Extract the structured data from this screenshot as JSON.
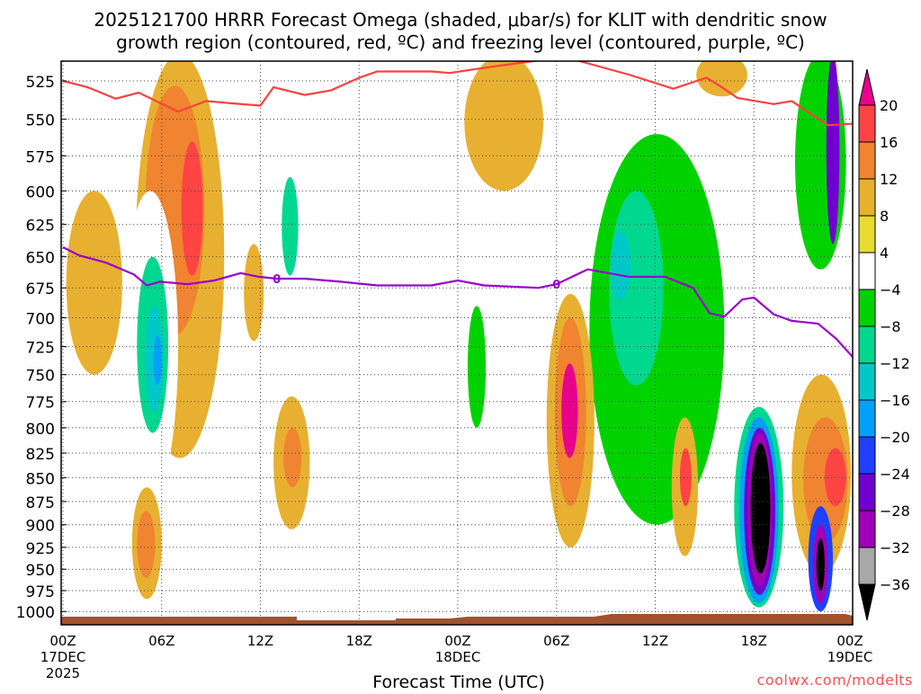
{
  "chart_data": {
    "type": "heatmap",
    "title_lines": [
      "2025121700 HRRR Forecast Omega (shaded, μbar/s) for KLIT with dendritic snow",
      "growth region (contoured, red, ºC) and freezing level (contoured, purple, ºC)"
    ],
    "xlabel": "Forecast Time (UTC)",
    "ylabel": "",
    "x_ticks": [
      {
        "hour": 0,
        "label": "00Z",
        "sub": "17DEC",
        "sub2": "2025"
      },
      {
        "hour": 6,
        "label": "06Z"
      },
      {
        "hour": 12,
        "label": "12Z"
      },
      {
        "hour": 18,
        "label": "18Z"
      },
      {
        "hour": 24,
        "label": "00Z",
        "sub": "18DEC"
      },
      {
        "hour": 30,
        "label": "06Z"
      },
      {
        "hour": 36,
        "label": "12Z"
      },
      {
        "hour": 42,
        "label": "18Z"
      },
      {
        "hour": 48,
        "label": "00Z",
        "sub": "19DEC"
      }
    ],
    "x_range_hours": [
      0,
      48
    ],
    "y_range_hpa": [
      507,
      1012
    ],
    "y_scale": "log",
    "y_ticks": [
      525,
      550,
      575,
      600,
      625,
      650,
      675,
      700,
      725,
      750,
      775,
      800,
      825,
      850,
      875,
      900,
      925,
      950,
      975,
      1000
    ],
    "grid": true,
    "colorbar": {
      "labels": [
        "20",
        "16",
        "12",
        "8",
        "4",
        "−4",
        "−8",
        "−12",
        "−16",
        "−20",
        "−24",
        "−28",
        "−32",
        "−36"
      ],
      "colors": [
        "#ff4444",
        "#f08430",
        "#e8b030",
        "#e8dc30",
        "#ffffff",
        "#00d200",
        "#00d890",
        "#00c8c8",
        "#00a0ff",
        "#2040ff",
        "#7000d0",
        "#a000b8",
        "#a8a8a8"
      ],
      "over_color": "#e8008c",
      "under_color": "#000000"
    },
    "shaded_regions": [
      {
        "level": 5,
        "h": [
          1.0,
          4.5
        ],
        "p": [
          508,
          522
        ]
      },
      {
        "level": 3,
        "h": [
          0.2,
          3.6
        ],
        "p": [
          600,
          750
        ]
      },
      {
        "level": 3,
        "h": [
          4.4,
          9.8
        ],
        "p": [
          508,
          830
        ]
      },
      {
        "level": 2,
        "h": [
          5.0,
          8.6
        ],
        "p": [
          528,
          715
        ]
      },
      {
        "level": 1,
        "h": [
          7.2,
          8.5
        ],
        "p": [
          565,
          665
        ]
      },
      {
        "level": 5,
        "h": [
          3.6,
          7.0
        ],
        "p": [
          600,
          875
        ]
      },
      {
        "level": 7,
        "h": [
          4.5,
          6.4
        ],
        "p": [
          650,
          805
        ]
      },
      {
        "level": 8,
        "h": [
          5.0,
          6.1
        ],
        "p": [
          690,
          785
        ]
      },
      {
        "level": 9,
        "h": [
          5.5,
          6.0
        ],
        "p": [
          715,
          760
        ]
      },
      {
        "level": 3,
        "h": [
          4.2,
          6.0
        ],
        "p": [
          860,
          985
        ]
      },
      {
        "level": 2,
        "h": [
          4.5,
          5.6
        ],
        "p": [
          885,
          960
        ]
      },
      {
        "level": 5,
        "h": [
          9.6,
          10.7
        ],
        "p": [
          508,
          525
        ]
      },
      {
        "level": 5,
        "h": [
          12.2,
          14.8
        ],
        "p": [
          522,
          715
        ]
      },
      {
        "level": 7,
        "h": [
          13.3,
          14.3
        ],
        "p": [
          590,
          665
        ]
      },
      {
        "level": 3,
        "h": [
          12.8,
          15.0
        ],
        "p": [
          770,
          905
        ]
      },
      {
        "level": 2,
        "h": [
          13.4,
          14.5
        ],
        "p": [
          800,
          860
        ]
      },
      {
        "level": 5,
        "h": [
          9.2,
          12.6
        ],
        "p": [
          790,
          955
        ]
      },
      {
        "level": 5,
        "h": [
          14.6,
          16.4
        ],
        "p": [
          855,
          960
        ]
      },
      {
        "level": 3,
        "h": [
          11.0,
          12.2
        ],
        "p": [
          640,
          720
        ]
      },
      {
        "level": 3,
        "h": [
          24.4,
          29.2
        ],
        "p": [
          508,
          600
        ]
      },
      {
        "level": 5,
        "h": [
          20.4,
          22.5
        ],
        "p": [
          810,
          985
        ]
      },
      {
        "level": 5,
        "h": [
          24.0,
          26.3
        ],
        "p": [
          640,
          955
        ]
      },
      {
        "level": 6,
        "h": [
          24.6,
          25.7
        ],
        "p": [
          690,
          800
        ]
      },
      {
        "level": 5,
        "h": [
          27.8,
          29.8
        ],
        "p": [
          810,
          975
        ]
      },
      {
        "level": 5,
        "h": [
          31.0,
          41.6
        ],
        "p": [
          528,
          985
        ]
      },
      {
        "level": 6,
        "h": [
          32.0,
          40.2
        ],
        "p": [
          560,
          900
        ]
      },
      {
        "level": 7,
        "h": [
          33.2,
          36.5
        ],
        "p": [
          600,
          760
        ]
      },
      {
        "level": 8,
        "h": [
          33.3,
          34.5
        ],
        "p": [
          630,
          685
        ]
      },
      {
        "level": 3,
        "h": [
          29.4,
          32.3
        ],
        "p": [
          680,
          925
        ]
      },
      {
        "level": 2,
        "h": [
          29.9,
          31.8
        ],
        "p": [
          700,
          880
        ]
      },
      {
        "level": 0,
        "h": [
          30.3,
          31.3
        ],
        "p": [
          740,
          830
        ]
      },
      {
        "level": 3,
        "h": [
          37.0,
          38.6
        ],
        "p": [
          790,
          935
        ]
      },
      {
        "level": 1,
        "h": [
          37.5,
          38.2
        ],
        "p": [
          820,
          880
        ]
      },
      {
        "level": 3,
        "h": [
          38.5,
          41.6
        ],
        "p": [
          508,
          535
        ]
      },
      {
        "level": 7,
        "h": [
          40.8,
          43.8
        ],
        "p": [
          780,
          995
        ]
      },
      {
        "level": 9,
        "h": [
          41.1,
          43.5
        ],
        "p": [
          790,
          990
        ]
      },
      {
        "level": 11,
        "h": [
          41.4,
          43.3
        ],
        "p": [
          800,
          980
        ]
      },
      {
        "level": 12,
        "h": [
          41.6,
          43.1
        ],
        "p": [
          805,
          970
        ]
      },
      {
        "level": -1,
        "h": [
          41.8,
          43.0
        ],
        "p": [
          815,
          955
        ]
      },
      {
        "level": 5,
        "h": [
          42.7,
          48.0
        ],
        "p": [
          508,
          730
        ]
      },
      {
        "level": 6,
        "h": [
          44.5,
          47.6
        ],
        "p": [
          508,
          660
        ]
      },
      {
        "level": 11,
        "h": [
          46.4,
          47.2
        ],
        "p": [
          508,
          640
        ]
      },
      {
        "level": 3,
        "h": [
          44.3,
          47.9
        ],
        "p": [
          750,
          955
        ]
      },
      {
        "level": 2,
        "h": [
          45.0,
          47.7
        ],
        "p": [
          790,
          920
        ]
      },
      {
        "level": 1,
        "h": [
          46.3,
          47.6
        ],
        "p": [
          820,
          880
        ]
      },
      {
        "level": 10,
        "h": [
          45.3,
          46.8
        ],
        "p": [
          880,
          1000
        ]
      },
      {
        "level": 12,
        "h": [
          45.6,
          46.5
        ],
        "p": [
          900,
          990
        ]
      },
      {
        "level": -1,
        "h": [
          45.8,
          46.3
        ],
        "p": [
          915,
          975
        ]
      }
    ],
    "series": [
      {
        "name": "dendritic snow growth region (red)",
        "color": "#ff4040",
        "points": [
          [
            0,
            525
          ],
          [
            1.5,
            529
          ],
          [
            3.2,
            536.5
          ],
          [
            4.6,
            532.5
          ],
          [
            7,
            545
          ],
          [
            8.7,
            538
          ],
          [
            10.3,
            539.5
          ],
          [
            12,
            541
          ],
          [
            12.8,
            529
          ],
          [
            14.7,
            534
          ],
          [
            16.3,
            531
          ],
          [
            18,
            523
          ],
          [
            19.1,
            519
          ],
          [
            22.4,
            519
          ],
          [
            23.5,
            520
          ],
          [
            25.1,
            517.5
          ],
          [
            26.8,
            515
          ],
          [
            29,
            512
          ],
          [
            31.2,
            512
          ],
          [
            34.4,
            521
          ],
          [
            37.1,
            530
          ],
          [
            39.1,
            523
          ],
          [
            39.9,
            528
          ],
          [
            41,
            536
          ],
          [
            43.2,
            540
          ],
          [
            44.3,
            538
          ],
          [
            46.5,
            554
          ],
          [
            48,
            553
          ]
        ]
      },
      {
        "name": "freezing level (purple)",
        "color": "#9900cc",
        "label": "0",
        "label_hours": [
          13,
          30
        ],
        "points": [
          [
            0,
            642.5
          ],
          [
            1,
            649
          ],
          [
            2.6,
            654.6
          ],
          [
            4.3,
            664
          ],
          [
            5.1,
            673
          ],
          [
            5.9,
            670
          ],
          [
            7.6,
            672
          ],
          [
            9.2,
            669
          ],
          [
            10.8,
            663
          ],
          [
            11.9,
            666
          ],
          [
            13,
            667.5
          ],
          [
            14.7,
            667.5
          ],
          [
            16.9,
            670
          ],
          [
            19.1,
            673
          ],
          [
            22.4,
            673
          ],
          [
            24,
            669
          ],
          [
            25.6,
            673
          ],
          [
            28.9,
            675
          ],
          [
            30,
            672
          ],
          [
            31.9,
            660
          ],
          [
            34.4,
            666
          ],
          [
            36.6,
            666
          ],
          [
            38.3,
            675
          ],
          [
            39.3,
            696
          ],
          [
            40.2,
            699
          ],
          [
            41.3,
            684.6
          ],
          [
            42,
            683
          ],
          [
            43.2,
            697
          ],
          [
            44.3,
            702.6
          ],
          [
            45.9,
            705
          ],
          [
            47,
            718
          ],
          [
            48,
            734
          ]
        ]
      }
    ]
  },
  "watermark": "coolwx.com/modelts"
}
